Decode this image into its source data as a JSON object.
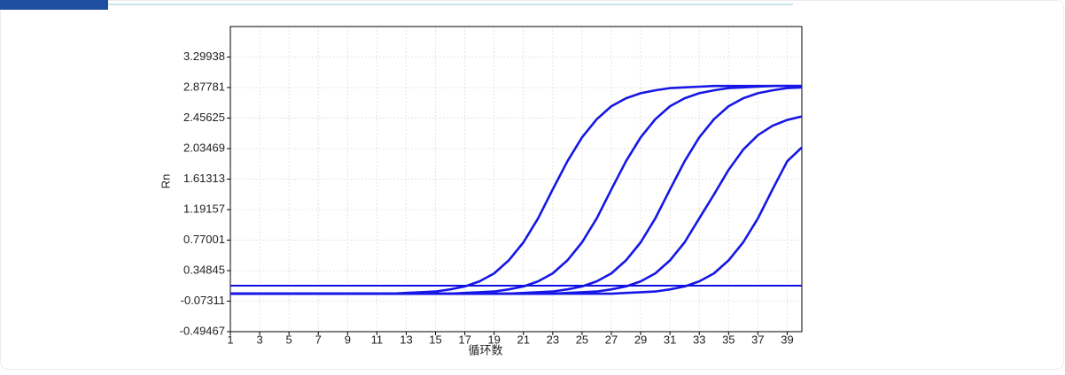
{
  "chart_data": {
    "type": "line",
    "xlabel": "循环数",
    "ylabel": "Rn",
    "x": [
      1,
      2,
      3,
      4,
      5,
      6,
      7,
      8,
      9,
      10,
      11,
      12,
      13,
      14,
      15,
      16,
      17,
      18,
      19,
      20,
      21,
      22,
      23,
      24,
      25,
      26,
      27,
      28,
      29,
      30,
      31,
      32,
      33,
      34,
      35,
      36,
      37,
      38,
      39,
      40
    ],
    "xlim": [
      1,
      40
    ],
    "xticks": [
      1,
      3,
      5,
      7,
      9,
      11,
      13,
      15,
      17,
      19,
      21,
      23,
      25,
      27,
      29,
      31,
      33,
      35,
      37,
      39
    ],
    "ylim": [
      -0.49467,
      3.72094
    ],
    "yticks": [
      -0.49467,
      -0.07311,
      0.34845,
      0.77001,
      1.19157,
      1.61313,
      2.03469,
      2.45625,
      2.87781,
      3.29938
    ],
    "grid": true,
    "threshold": 0.14,
    "threshold_color": "#1010e0",
    "series": [
      {
        "color": "#1616e6",
        "values": [
          0.03,
          0.03,
          0.03,
          0.03,
          0.03,
          0.03,
          0.03,
          0.03,
          0.03,
          0.03,
          0.03,
          0.03,
          0.04,
          0.05,
          0.06,
          0.09,
          0.13,
          0.2,
          0.31,
          0.49,
          0.74,
          1.07,
          1.47,
          1.86,
          2.19,
          2.44,
          2.62,
          2.73,
          2.8,
          2.84,
          2.87,
          2.88,
          2.89,
          2.9,
          2.9,
          2.9,
          2.9,
          2.9,
          2.9,
          2.9
        ]
      },
      {
        "color": "#1616e6",
        "values": [
          0.03,
          0.03,
          0.03,
          0.03,
          0.03,
          0.03,
          0.03,
          0.03,
          0.03,
          0.03,
          0.03,
          0.03,
          0.03,
          0.03,
          0.03,
          0.03,
          0.04,
          0.05,
          0.06,
          0.09,
          0.13,
          0.2,
          0.31,
          0.49,
          0.74,
          1.07,
          1.47,
          1.86,
          2.19,
          2.44,
          2.62,
          2.73,
          2.8,
          2.84,
          2.87,
          2.88,
          2.89,
          2.9,
          2.9,
          2.9
        ]
      },
      {
        "color": "#1616e6",
        "values": [
          0.03,
          0.03,
          0.03,
          0.03,
          0.03,
          0.03,
          0.03,
          0.03,
          0.03,
          0.03,
          0.03,
          0.03,
          0.03,
          0.03,
          0.03,
          0.03,
          0.03,
          0.03,
          0.03,
          0.03,
          0.04,
          0.05,
          0.06,
          0.09,
          0.13,
          0.2,
          0.31,
          0.49,
          0.74,
          1.07,
          1.47,
          1.86,
          2.19,
          2.44,
          2.62,
          2.73,
          2.8,
          2.84,
          2.87,
          2.88
        ]
      },
      {
        "color": "#1616e6",
        "values": [
          0.03,
          0.03,
          0.03,
          0.03,
          0.03,
          0.03,
          0.03,
          0.03,
          0.03,
          0.03,
          0.03,
          0.03,
          0.03,
          0.03,
          0.03,
          0.03,
          0.03,
          0.03,
          0.03,
          0.03,
          0.03,
          0.03,
          0.03,
          0.04,
          0.05,
          0.06,
          0.09,
          0.13,
          0.2,
          0.31,
          0.49,
          0.74,
          1.07,
          1.4,
          1.74,
          2.02,
          2.22,
          2.35,
          2.43,
          2.48
        ]
      },
      {
        "color": "#1616e6",
        "values": [
          0.03,
          0.03,
          0.03,
          0.03,
          0.03,
          0.03,
          0.03,
          0.03,
          0.03,
          0.03,
          0.03,
          0.03,
          0.03,
          0.03,
          0.03,
          0.03,
          0.03,
          0.03,
          0.03,
          0.03,
          0.03,
          0.03,
          0.03,
          0.03,
          0.03,
          0.03,
          0.03,
          0.04,
          0.05,
          0.06,
          0.09,
          0.13,
          0.2,
          0.31,
          0.49,
          0.74,
          1.07,
          1.47,
          1.86,
          2.05
        ]
      }
    ]
  }
}
